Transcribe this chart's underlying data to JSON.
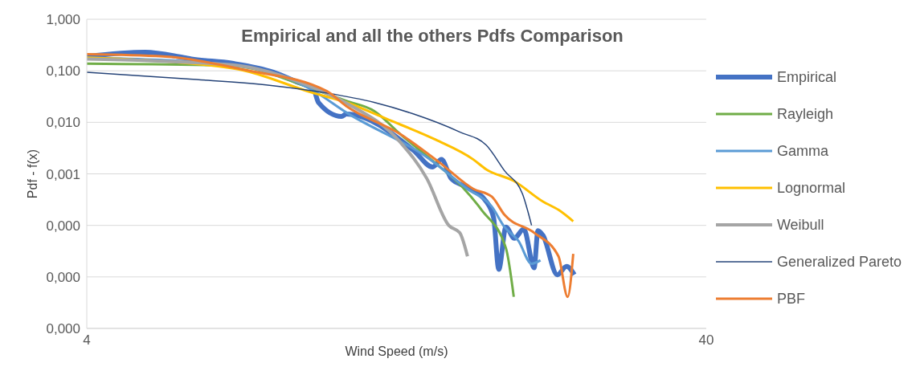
{
  "chart_data": {
    "type": "line",
    "title": "Empirical and all the others Pdfs Comparison",
    "xlabel": "Wind Speed (m/s)",
    "ylabel": "Pdf - f(x)",
    "log": "xy",
    "xlim": [
      4,
      40
    ],
    "xticks": [
      4,
      40
    ],
    "ylim": [
      1e-06,
      1
    ],
    "yticks": [
      {
        "value": 1,
        "label": "1,000"
      },
      {
        "value": 0.1,
        "label": "0,100"
      },
      {
        "value": 0.01,
        "label": "0,010"
      },
      {
        "value": 0.001,
        "label": "0,001"
      },
      {
        "value": 0.0001,
        "label": "0,000"
      },
      {
        "value": 1e-05,
        "label": "0,000"
      },
      {
        "value": 1e-06,
        "label": "0,000"
      }
    ],
    "grid": "y",
    "legend": "right",
    "marker": "none",
    "series": [
      {
        "name": "Empirical",
        "color": "#4472c4",
        "x": [
          4,
          4.97,
          5.74,
          5.9,
          6.87,
          8.0,
          8.7,
          9.29,
          9.47,
          10.31,
          10.5,
          13.46,
          14.47,
          14.95,
          15.5,
          16.32,
          17.66,
          18.15,
          18.5,
          19.0,
          19.6,
          20.3,
          21.1,
          21.4,
          21.8,
          23.0,
          23.8,
          24.5
        ],
        "values": [
          0.19,
          0.23,
          0.18,
          0.17,
          0.14,
          0.094,
          0.062,
          0.044,
          0.024,
          0.013,
          0.0145,
          0.0029,
          0.00136,
          0.0019,
          0.00081,
          0.00057,
          0.00029,
          0.00014,
          1.4e-05,
          9.3e-05,
          5.6e-05,
          8.5e-05,
          1.5e-05,
          7.9e-05,
          6.4e-05,
          1.1e-05,
          1.6e-05,
          1.1e-05
        ]
      },
      {
        "name": "Rayleigh",
        "color": "#70ad47",
        "x": [
          4,
          6.87,
          9.29,
          10.5,
          11.64,
          12.83,
          14.63,
          16.13,
          17.35,
          19.0,
          19.56
        ],
        "values": [
          0.138,
          0.125,
          0.044,
          0.026,
          0.0166,
          0.0059,
          0.0016,
          0.00057,
          0.0002,
          3.6e-05,
          4.1e-06
        ]
      },
      {
        "name": "Gamma",
        "color": "#5b9bd5",
        "x": [
          4,
          6.87,
          9.29,
          10.5,
          14.16,
          16.47,
          18.03,
          18.9,
          19.9,
          20.9,
          21.6
        ],
        "values": [
          0.18,
          0.13,
          0.041,
          0.0155,
          0.0021,
          0.00051,
          0.00023,
          9.3e-05,
          5e-05,
          1.8e-05,
          2.1e-05
        ]
      },
      {
        "name": "Lognormal",
        "color": "#ffc000",
        "x": [
          4,
          6.87,
          9.29,
          10.5,
          12.18,
          14.63,
          16.83,
          17.66,
          19.56,
          21.8,
          23.1,
          24.4
        ],
        "values": [
          0.18,
          0.112,
          0.037,
          0.0244,
          0.0117,
          0.0046,
          0.0019,
          0.00122,
          0.00073,
          0.00029,
          0.0002,
          0.00012
        ]
      },
      {
        "name": "Weibull",
        "color": "#a5a5a5",
        "x": [
          4,
          6.87,
          9.29,
          10.5,
          12.83,
          14.16,
          15.36,
          16.0,
          16.47
        ],
        "values": [
          0.17,
          0.13,
          0.047,
          0.0236,
          0.0041,
          0.00081,
          0.0001,
          7.2e-05,
          2.5e-05
        ]
      },
      {
        "name": "Generalized Pareto",
        "color": "#264478",
        "x": [
          4,
          5.87,
          7.94,
          9.77,
          11.64,
          13.46,
          16.0,
          17.66,
          18.9,
          20.2,
          20.9
        ],
        "values": [
          0.094,
          0.069,
          0.052,
          0.037,
          0.0244,
          0.0146,
          0.0065,
          0.0036,
          0.00115,
          0.00041,
          0.0001
        ]
      },
      {
        "name": "PBF",
        "color": "#ed7d31",
        "x": [
          4,
          5.31,
          7.18,
          9.77,
          10.5,
          12.83,
          14.9,
          16.83,
          18.03,
          18.9,
          21.1,
          23.1,
          23.9,
          24.4
        ],
        "values": [
          0.21,
          0.19,
          0.105,
          0.04,
          0.0205,
          0.0059,
          0.0016,
          0.00051,
          0.00036,
          0.00016,
          7.2e-05,
          2.5e-05,
          4.1e-06,
          2.8e-05
        ]
      }
    ]
  }
}
